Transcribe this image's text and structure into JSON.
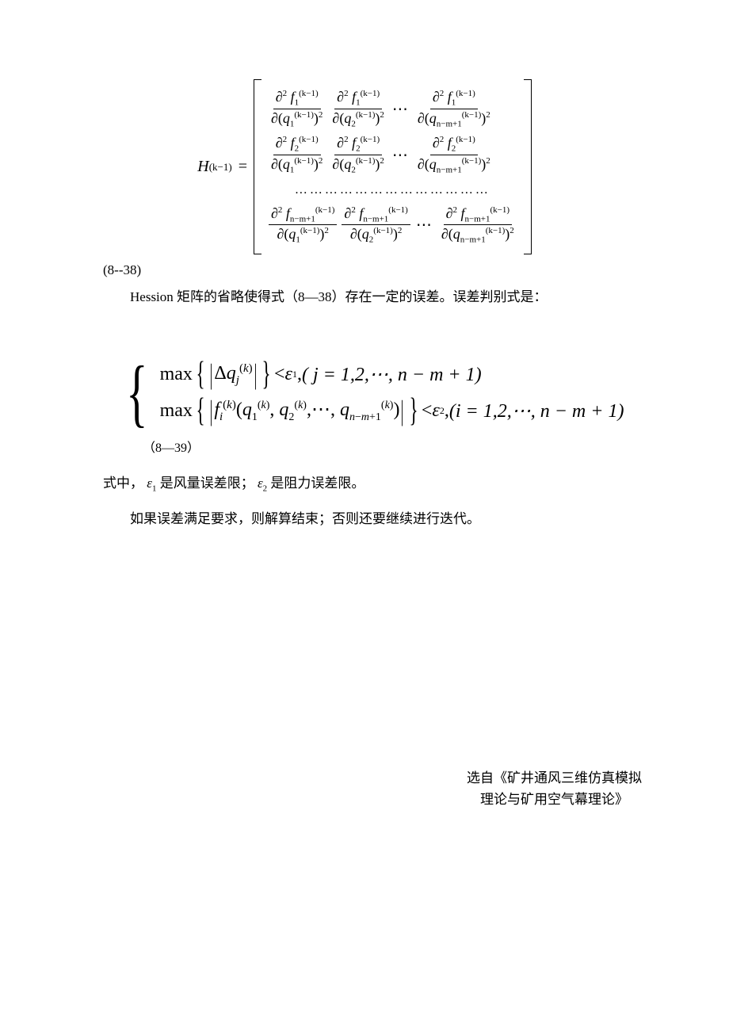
{
  "matrix": {
    "lhs_symbol": "H",
    "lhs_superscript": "(k−1)",
    "equals": "=",
    "partial": "∂",
    "func_symbol": "f",
    "var_symbol": "q",
    "superscript_k1": "(k−1)",
    "squared": "2",
    "row_subscripts": [
      "1",
      "2",
      "n−m+1"
    ],
    "col_subscripts": [
      "1",
      "2",
      "n−m+1"
    ],
    "cdots": "⋯",
    "dots_row": "…………………………………"
  },
  "eq_label_1": "(8--38)",
  "para_1": "Hession 矩阵的省略使得式（8—38）存在一定的误差。误差判别式是：",
  "system": {
    "max_label": "max",
    "delta": "Δ",
    "q_symbol": "q",
    "f_symbol": "f",
    "sup_k": "(k)",
    "sub_j": "j",
    "sub_i": "i",
    "eps": "ε",
    "eps1_sub": "1",
    "eps2_sub": "2",
    "lt": "<",
    "comma": ",",
    "line1_range": "( j = 1,2,⋯, n − m + 1)",
    "line2_args": "(q",
    "line2_sub1": "1",
    "line2_sub2": "2",
    "line2_subN": "n−m+1",
    "line2_range": "(i = 1,2,⋯, n − m + 1)",
    "cdots": "⋯",
    "close_paren": ")"
  },
  "eq_label_2": "（8—39）",
  "eps_line": {
    "prefix": "式中，",
    "eps": "ε",
    "sub1": "1",
    "text1": " 是风量误差限；",
    "sub2": "2",
    "text2": " 是阻力误差限。"
  },
  "para_2": "如果误差满足要求，则解算结束；否则还要继续进行迭代。",
  "citation": {
    "line1": "选自《矿井通风三维仿真模拟",
    "line2": "理论与矿用空气幕理论》"
  }
}
